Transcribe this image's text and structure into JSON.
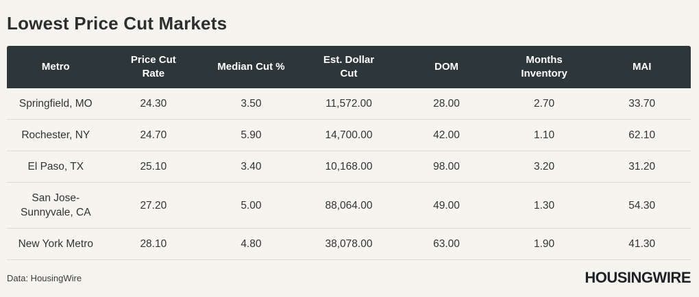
{
  "title": "Lowest Price Cut Markets",
  "footer": {
    "source": "Data: HousingWire",
    "brand": "HOUSINGWIRE"
  },
  "colors": {
    "page_background": "#f6f4ef",
    "header_background": "#2d3739",
    "header_text": "#ffffff",
    "body_text": "#333333",
    "row_separator": "#ddd9d2"
  },
  "chart_data": {
    "type": "table",
    "title": "Lowest Price Cut Markets",
    "columns": [
      "Metro",
      "Price Cut\nRate",
      "Median Cut %",
      "Est. Dollar\nCut",
      "DOM",
      "Months\nInventory",
      "MAI"
    ],
    "rows": [
      [
        "Springfield, MO",
        "24.30",
        "3.50",
        "11,572.00",
        "28.00",
        "2.70",
        "33.70"
      ],
      [
        "Rochester, NY",
        "24.70",
        "5.90",
        "14,700.00",
        "42.00",
        "1.10",
        "62.10"
      ],
      [
        "El Paso, TX",
        "25.10",
        "3.40",
        "10,168.00",
        "98.00",
        "3.20",
        "31.20"
      ],
      [
        "San Jose-\nSunnyvale, CA",
        "27.20",
        "5.00",
        "88,064.00",
        "49.00",
        "1.30",
        "54.30"
      ],
      [
        "New York Metro",
        "28.10",
        "4.80",
        "38,078.00",
        "63.00",
        "1.90",
        "41.30"
      ]
    ],
    "source_note": "Data: HousingWire"
  }
}
